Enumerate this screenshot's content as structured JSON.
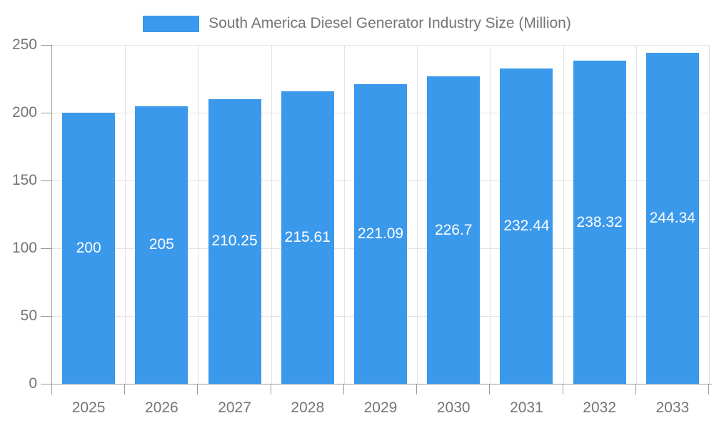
{
  "legend": {
    "series_label": "South America Diesel Generator Industry Size (Million)"
  },
  "chart_data": {
    "type": "bar",
    "title": "South America Diesel Generator Industry Size (Million)",
    "categories": [
      "2025",
      "2026",
      "2027",
      "2028",
      "2029",
      "2030",
      "2031",
      "2032",
      "2033"
    ],
    "values": [
      200,
      205,
      210.25,
      215.61,
      221.09,
      226.7,
      232.44,
      238.32,
      244.34
    ],
    "bar_labels": [
      "200",
      "205",
      "210.25",
      "215.61",
      "221.09",
      "226.7",
      "232.44",
      "238.32",
      "244.34"
    ],
    "xlabel": "",
    "ylabel": "",
    "ylim": [
      0,
      250
    ],
    "yticks": [
      0,
      50,
      100,
      150,
      200,
      250
    ],
    "grid": true,
    "legend_position": "top-center",
    "colors": {
      "bar": "#3B99EC",
      "axis_line": "#999999",
      "grid_line": "#E3E3E3",
      "axis_text": "#757575",
      "bar_label_text": "#FFFFFF",
      "background": "#FFFFFF"
    }
  }
}
